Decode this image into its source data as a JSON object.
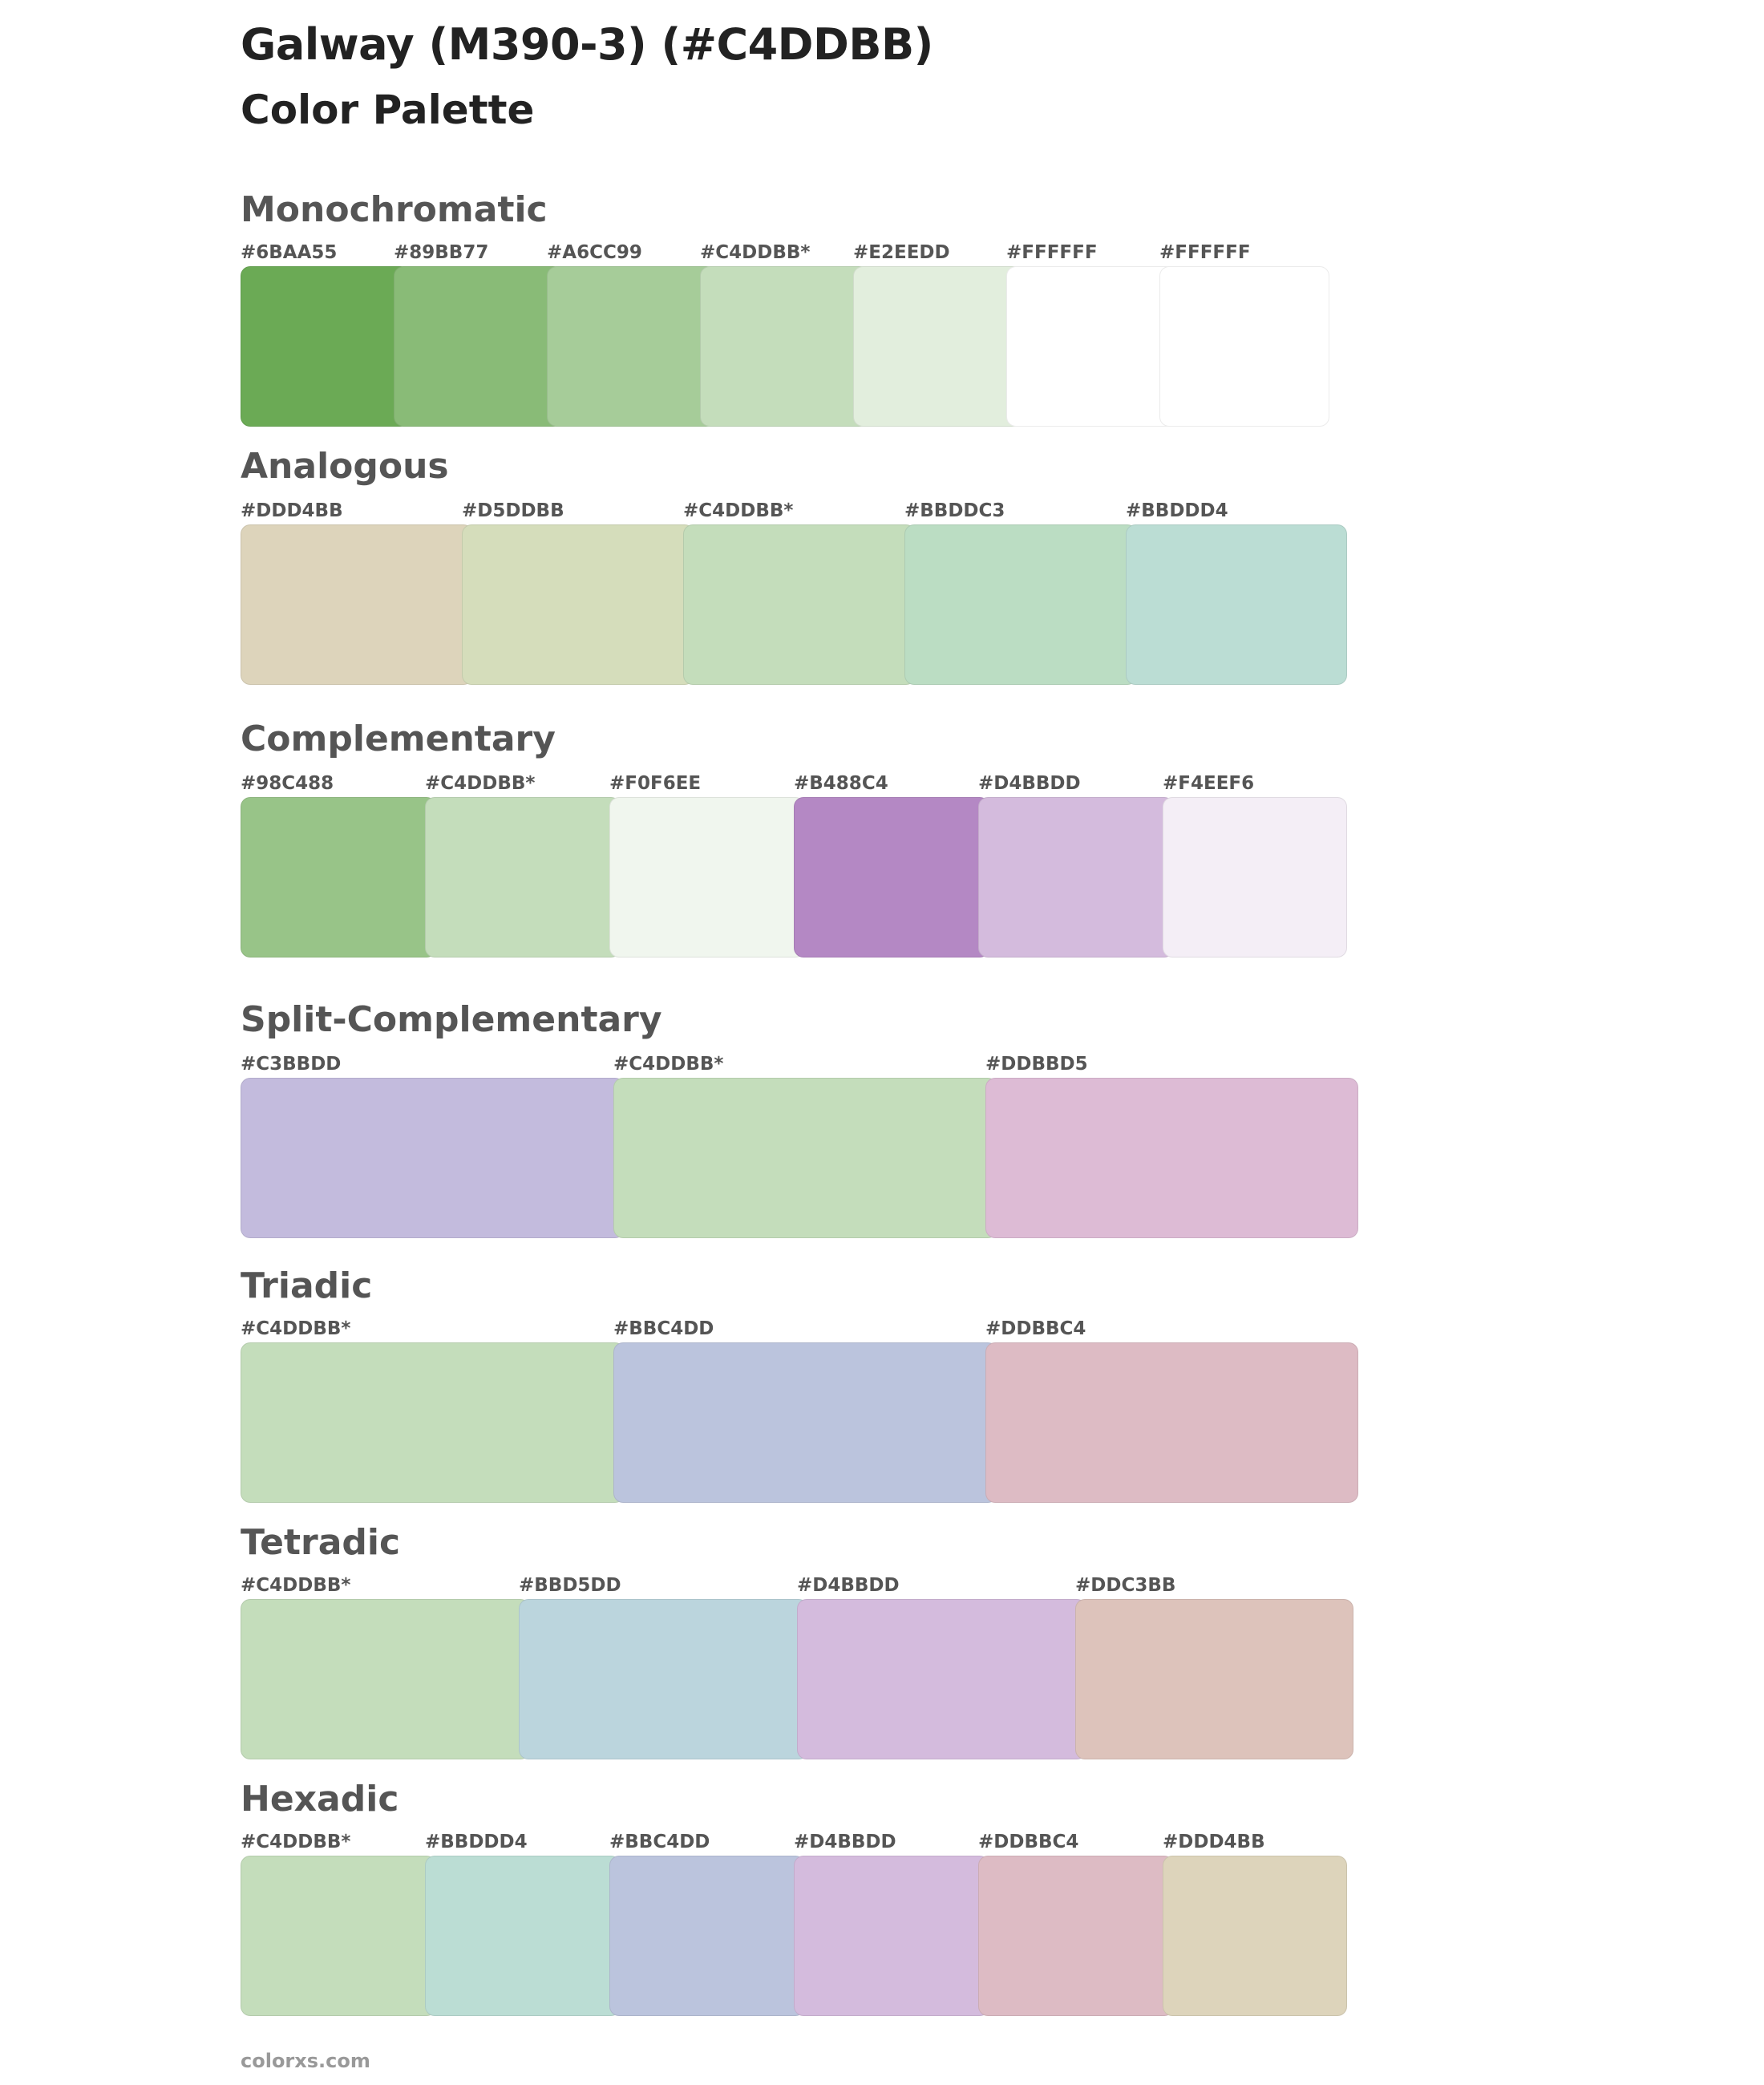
{
  "title": "Galway (M390-3) (#C4DDBB)",
  "subtitle": "Color Palette",
  "sections": [
    {
      "heading": "Monochromatic",
      "swatches": [
        {
          "label": "#6BAA55",
          "color": "#6BAA55"
        },
        {
          "label": "#89BB77",
          "color": "#89BB77"
        },
        {
          "label": "#A6CC99",
          "color": "#A6CC99"
        },
        {
          "label": "#C4DDBB*",
          "color": "#C4DDBB"
        },
        {
          "label": "#E2EEDD",
          "color": "#E2EEDD"
        },
        {
          "label": "#FFFFFF",
          "color": "#FFFFFF"
        },
        {
          "label": "#FFFFFF",
          "color": "#FFFFFF"
        }
      ]
    },
    {
      "heading": "Analogous",
      "swatches": [
        {
          "label": "#DDD4BB",
          "color": "#DDD4BB"
        },
        {
          "label": "#D5DDBB",
          "color": "#D5DDBB"
        },
        {
          "label": "#C4DDBB*",
          "color": "#C4DDBB"
        },
        {
          "label": "#BBDDC3",
          "color": "#BBDDC3"
        },
        {
          "label": "#BBDDD4",
          "color": "#BBDDD4"
        }
      ]
    },
    {
      "heading": "Complementary",
      "swatches": [
        {
          "label": "#98C488",
          "color": "#98C488"
        },
        {
          "label": "#C4DDBB*",
          "color": "#C4DDBB"
        },
        {
          "label": "#F0F6EE",
          "color": "#F0F6EE"
        },
        {
          "label": "#B488C4",
          "color": "#B488C4"
        },
        {
          "label": "#D4BBDD",
          "color": "#D4BBDD"
        },
        {
          "label": "#F4EEF6",
          "color": "#F4EEF6"
        }
      ]
    },
    {
      "heading": "Split-Complementary",
      "swatches": [
        {
          "label": "#C3BBDD",
          "color": "#C3BBDD"
        },
        {
          "label": "#C4DDBB*",
          "color": "#C4DDBB"
        },
        {
          "label": "#DDBBD5",
          "color": "#DDBBD5"
        }
      ]
    },
    {
      "heading": "Triadic",
      "swatches": [
        {
          "label": "#C4DDBB*",
          "color": "#C4DDBB"
        },
        {
          "label": "#BBC4DD",
          "color": "#BBC4DD"
        },
        {
          "label": "#DDBBC4",
          "color": "#DDBBC4"
        }
      ]
    },
    {
      "heading": "Tetradic",
      "swatches": [
        {
          "label": "#C4DDBB*",
          "color": "#C4DDBB"
        },
        {
          "label": "#BBD5DD",
          "color": "#BBD5DD"
        },
        {
          "label": "#D4BBDD",
          "color": "#D4BBDD"
        },
        {
          "label": "#DDC3BB",
          "color": "#DDC3BB"
        }
      ]
    },
    {
      "heading": "Hexadic",
      "swatches": [
        {
          "label": "#C4DDBB*",
          "color": "#C4DDBB"
        },
        {
          "label": "#BBDDD4",
          "color": "#BBDDD4"
        },
        {
          "label": "#BBC4DD",
          "color": "#BBC4DD"
        },
        {
          "label": "#D4BBDD",
          "color": "#D4BBDD"
        },
        {
          "label": "#DDBBC4",
          "color": "#DDBBC4"
        },
        {
          "label": "#DDD4BB",
          "color": "#DDD4BB"
        }
      ]
    }
  ],
  "footer": "colorxs.com"
}
